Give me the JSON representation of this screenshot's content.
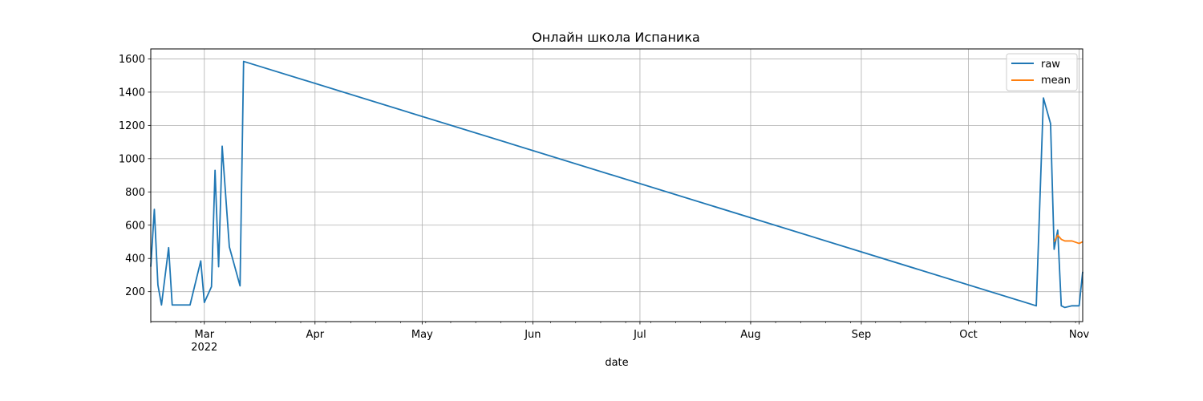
{
  "chart_data": {
    "type": "line",
    "title": "Онлайн школа Испаника",
    "xlabel": "date",
    "ylabel": "",
    "xlim": [
      "2022-02-14",
      "2022-11-02"
    ],
    "ylim": [
      20,
      1660
    ],
    "grid": true,
    "legend_position": "top-right",
    "x_ticks": [
      {
        "date": "2022-03-01",
        "label": "Mar",
        "sublabel": "2022"
      },
      {
        "date": "2022-04-01",
        "label": "Apr"
      },
      {
        "date": "2022-05-01",
        "label": "May"
      },
      {
        "date": "2022-06-01",
        "label": "Jun"
      },
      {
        "date": "2022-07-01",
        "label": "Jul"
      },
      {
        "date": "2022-08-01",
        "label": "Aug"
      },
      {
        "date": "2022-09-01",
        "label": "Sep"
      },
      {
        "date": "2022-10-01",
        "label": "Oct"
      },
      {
        "date": "2022-11-01",
        "label": "Nov"
      }
    ],
    "y_ticks": [
      200,
      400,
      600,
      800,
      1000,
      1200,
      1400,
      1600
    ],
    "series": [
      {
        "name": "raw",
        "color": "#1f77b4",
        "points": [
          {
            "x": "2022-02-14",
            "y": 350
          },
          {
            "x": "2022-02-15",
            "y": 695
          },
          {
            "x": "2022-02-16",
            "y": 240
          },
          {
            "x": "2022-02-17",
            "y": 120
          },
          {
            "x": "2022-02-19",
            "y": 465
          },
          {
            "x": "2022-02-20",
            "y": 120
          },
          {
            "x": "2022-02-25",
            "y": 120
          },
          {
            "x": "2022-02-28",
            "y": 385
          },
          {
            "x": "2022-03-01",
            "y": 135
          },
          {
            "x": "2022-03-03",
            "y": 230
          },
          {
            "x": "2022-03-04",
            "y": 930
          },
          {
            "x": "2022-03-05",
            "y": 350
          },
          {
            "x": "2022-03-06",
            "y": 1075
          },
          {
            "x": "2022-03-08",
            "y": 470
          },
          {
            "x": "2022-03-11",
            "y": 235
          },
          {
            "x": "2022-03-12",
            "y": 1585
          },
          {
            "x": "2022-10-20",
            "y": 115
          },
          {
            "x": "2022-10-22",
            "y": 1365
          },
          {
            "x": "2022-10-24",
            "y": 1210
          },
          {
            "x": "2022-10-25",
            "y": 455
          },
          {
            "x": "2022-10-26",
            "y": 570
          },
          {
            "x": "2022-10-27",
            "y": 115
          },
          {
            "x": "2022-10-28",
            "y": 105
          },
          {
            "x": "2022-10-30",
            "y": 115
          },
          {
            "x": "2022-11-01",
            "y": 115
          },
          {
            "x": "2022-11-02",
            "y": 320
          }
        ]
      },
      {
        "name": "mean",
        "color": "#ff7f0e",
        "points": [
          {
            "x": "2022-10-25",
            "y": 500
          },
          {
            "x": "2022-10-26",
            "y": 540
          },
          {
            "x": "2022-10-27",
            "y": 515
          },
          {
            "x": "2022-10-28",
            "y": 505
          },
          {
            "x": "2022-10-30",
            "y": 505
          },
          {
            "x": "2022-11-01",
            "y": 490
          },
          {
            "x": "2022-11-02",
            "y": 500
          }
        ]
      }
    ]
  }
}
